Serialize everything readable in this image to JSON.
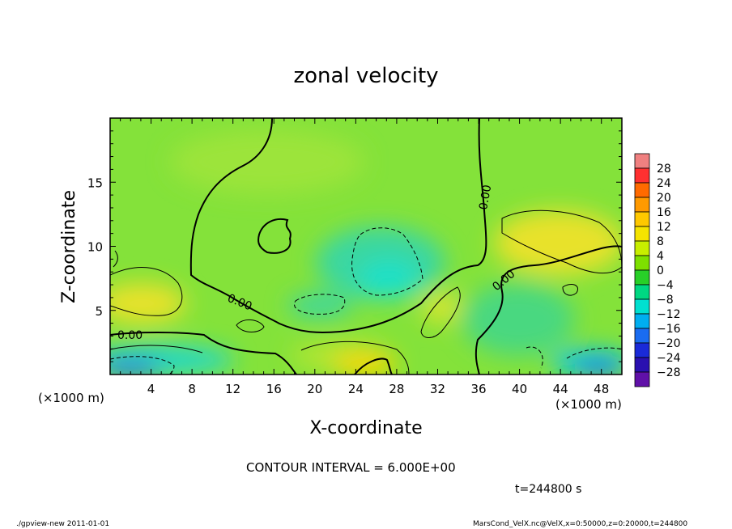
{
  "chart_data": {
    "type": "heatmap",
    "title": "zonal velocity",
    "xlabel": "X-coordinate",
    "ylabel": "Z-coordinate",
    "x_unit_note": "(×1000 m)",
    "y_unit_note": "(×1000 m)",
    "xlim": [
      0,
      50
    ],
    "ylim": [
      0,
      20
    ],
    "x_ticks": [
      4,
      8,
      12,
      16,
      20,
      24,
      28,
      32,
      36,
      40,
      44,
      48
    ],
    "y_ticks": [
      5,
      10,
      15
    ],
    "colorbar": {
      "labels": [
        "28",
        "24",
        "20",
        "16",
        "12",
        "8",
        "4",
        "0",
        "−4",
        "−8",
        "−12",
        "−16",
        "−20",
        "−24",
        "−28"
      ],
      "colors": [
        "#f08080",
        "#ff3030",
        "#ff6a00",
        "#ff9a00",
        "#ffc800",
        "#f5e400",
        "#c8ee00",
        "#7ee000",
        "#28d028",
        "#00d882",
        "#00e0d0",
        "#00aef0",
        "#1a6cf0",
        "#1a2ad8",
        "#2a10b0",
        "#6010a8"
      ]
    },
    "contour_labels": [
      "0.00",
      "0.00",
      "0.00",
      "0.00"
    ],
    "contour_interval": "CONTOUR INTERVAL = 6.000E+00",
    "time": "t=244800 s"
  },
  "footer": {
    "left": "./gpview-new  2011-01-01",
    "right": "MarsCond_VelX.nc@VelX,x=0:50000,z=0:20000,t=244800"
  }
}
